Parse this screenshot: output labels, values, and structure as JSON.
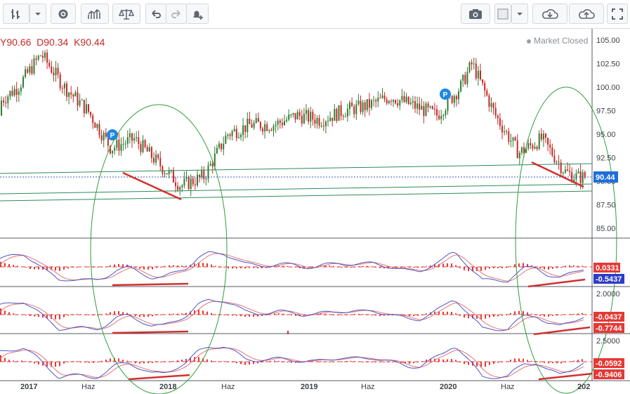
{
  "legend": {
    "low": "Y90.66",
    "close": "D90.34",
    "k": "K90.44"
  },
  "status": {
    "market": "Market Closed"
  },
  "toolbar": {
    "left_icons": [
      "bar-style-icon",
      "dropdown-icon",
      "gear-icon",
      "indicators-icon",
      "compare-icon",
      "undo-icon",
      "redo-icon",
      "alert-add-icon"
    ],
    "right_icons": [
      "camera-icon",
      "color-box-icon",
      "dropdown-icon",
      "cloud-download-icon",
      "cloud-upload-icon",
      "fullscreen-icon"
    ]
  },
  "colors": {
    "accent_red": "#d32f2f",
    "macd_line": "#4a55c8",
    "signal_line": "#e57373",
    "trend_green": "#2e8b57",
    "ellipse": "#2e9d3a",
    "price_badge": "#1e6fd9",
    "hist": "#e53935"
  },
  "chart_data": [
    {
      "type": "line",
      "name": "price",
      "x": [
        "2016-09",
        "2016-12",
        "2017-02",
        "2017-04",
        "2017-06",
        "2017-08",
        "2017-10",
        "2017-12",
        "2018-02",
        "2018-04",
        "2018-06",
        "2018-08",
        "2018-10",
        "2018-12",
        "2019-02",
        "2019-04",
        "2019-06",
        "2019-08",
        "2019-10",
        "2019-12",
        "2020-02",
        "2020-03",
        "2020-05",
        "2020-07",
        "2020-09",
        "2020-11",
        "2020-12"
      ],
      "y": [
        97,
        100,
        103.5,
        100,
        97.5,
        93.5,
        94.5,
        92,
        89.5,
        90.5,
        95,
        96,
        96,
        97,
        96.5,
        97.5,
        98,
        99,
        98,
        97,
        100,
        102.5,
        97,
        93,
        94.5,
        91,
        90.44
      ],
      "ylim": [
        84,
        106
      ],
      "yticks": [
        "105.00",
        "102.50",
        "100.00",
        "97.50",
        "95.00",
        "92.50",
        "90.00",
        "87.50",
        "85.00"
      ],
      "last_value": "90.44",
      "markers": [
        "P",
        "P"
      ]
    },
    {
      "type": "line",
      "name": "indicator-1",
      "labels": [
        "0.0331",
        "-0.5437"
      ]
    },
    {
      "type": "line",
      "name": "indicator-2",
      "tick": "2.0000",
      "labels": [
        "-0.0437",
        "-0.7744"
      ]
    },
    {
      "type": "line",
      "name": "indicator-3",
      "tick": "2.5000",
      "labels": [
        "-0.0592",
        "-0.9406"
      ]
    }
  ],
  "x_axis": {
    "ticks": [
      "2017",
      "Haz",
      "2018",
      "Haz",
      "2019",
      "Haz",
      "2020",
      "Haz",
      "202"
    ]
  }
}
